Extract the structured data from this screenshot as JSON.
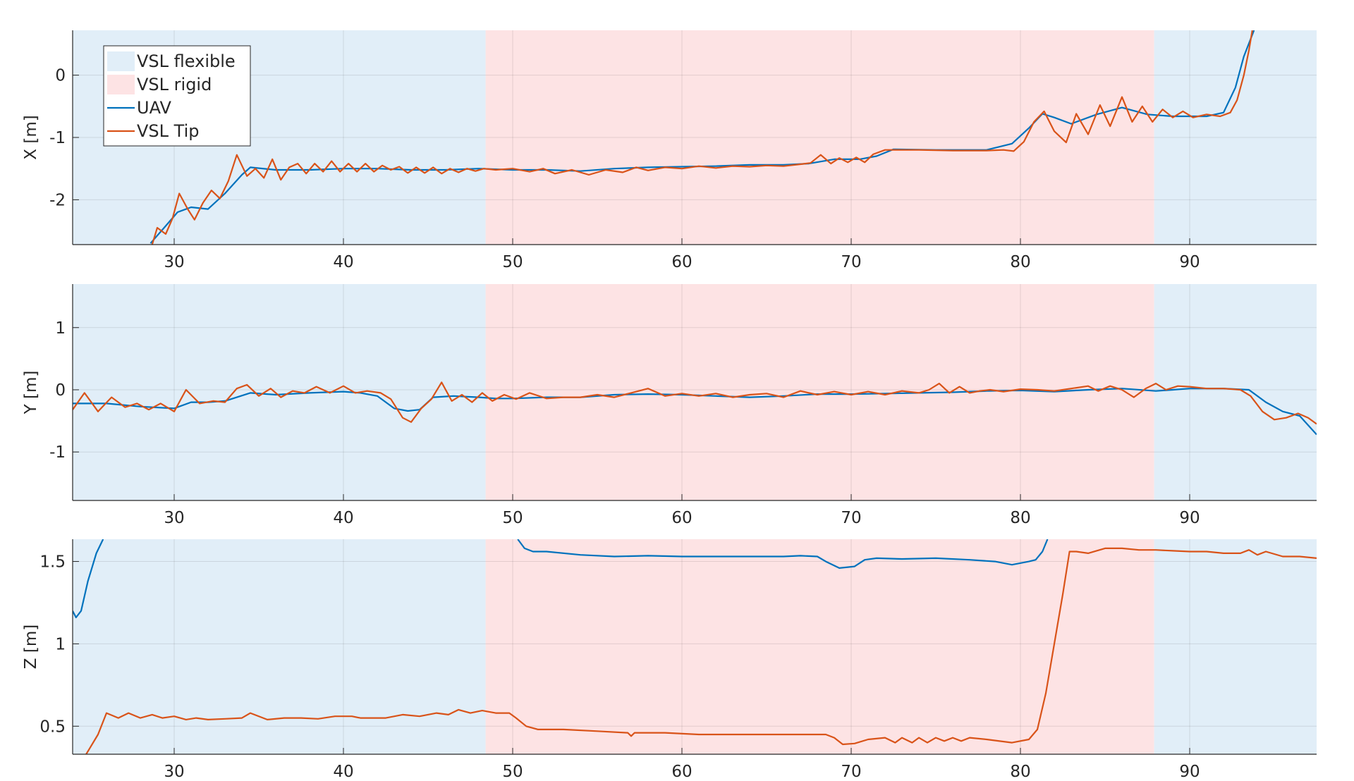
{
  "figure": {
    "legend": {
      "placement": "top-left of first panel",
      "entries": [
        {
          "label": "VSL flexible",
          "kind": "patch",
          "color": "#e1eef8"
        },
        {
          "label": "VSL rigid",
          "kind": "patch",
          "color": "#fde3e4"
        },
        {
          "label": "UAV",
          "kind": "line",
          "color": "#0072bd"
        },
        {
          "label": "VSL Tip",
          "kind": "line",
          "color": "#d95319"
        }
      ]
    }
  },
  "chart_data": [
    {
      "type": "line",
      "ylabel": "X [m]",
      "xlim": [
        24,
        97.5
      ],
      "ylim": [
        -2.72,
        0.72
      ],
      "xticks": [
        30,
        40,
        50,
        60,
        70,
        80,
        90
      ],
      "yticks": [
        -2,
        -1,
        0
      ],
      "ytick_labels": [
        "-2",
        "-1",
        "0"
      ],
      "grid": true,
      "regions": [
        {
          "label": "VSL flexible",
          "x": [
            24,
            48.4
          ]
        },
        {
          "label": "VSL rigid",
          "x": [
            48.4,
            87.9
          ]
        },
        {
          "label": "VSL flexible",
          "x": [
            87.9,
            97.5
          ]
        }
      ],
      "series": [
        {
          "name": "UAV",
          "color": "#0072bd",
          "x": [
            28.6,
            29.5,
            30.2,
            31.0,
            32.0,
            33.0,
            34.0,
            34.5,
            36,
            38,
            40,
            42,
            44,
            46,
            48,
            50,
            52,
            54,
            56,
            58,
            60,
            62,
            64,
            66,
            67.5,
            69,
            70.5,
            71.5,
            72.5,
            75,
            78,
            79.5,
            80.5,
            81.3,
            82.0,
            83.0,
            84.5,
            86.0,
            87.5,
            89,
            91,
            92.0,
            92.7,
            93.2,
            93.8
          ],
          "y": [
            -2.7,
            -2.42,
            -2.2,
            -2.12,
            -2.15,
            -1.9,
            -1.6,
            -1.48,
            -1.52,
            -1.52,
            -1.5,
            -1.5,
            -1.52,
            -1.52,
            -1.5,
            -1.52,
            -1.52,
            -1.54,
            -1.5,
            -1.48,
            -1.47,
            -1.46,
            -1.44,
            -1.44,
            -1.42,
            -1.35,
            -1.35,
            -1.3,
            -1.19,
            -1.2,
            -1.2,
            -1.1,
            -0.85,
            -0.62,
            -0.68,
            -0.78,
            -0.63,
            -0.52,
            -0.63,
            -0.66,
            -0.66,
            -0.6,
            -0.2,
            0.3,
            0.72
          ]
        },
        {
          "name": "VSL Tip",
          "color": "#d95319",
          "x": [
            28.7,
            29.0,
            29.5,
            29.9,
            30.3,
            30.8,
            31.2,
            31.7,
            32.2,
            32.7,
            33.2,
            33.7,
            34.3,
            34.8,
            35.3,
            35.8,
            36.3,
            36.8,
            37.3,
            37.8,
            38.3,
            38.8,
            39.3,
            39.8,
            40.3,
            40.8,
            41.3,
            41.8,
            42.3,
            42.8,
            43.3,
            43.8,
            44.3,
            44.8,
            45.3,
            45.8,
            46.3,
            46.8,
            47.3,
            47.8,
            48.3,
            49,
            50,
            51,
            51.8,
            52.5,
            53.5,
            54.5,
            55.5,
            56.5,
            57.3,
            58,
            59,
            60,
            61,
            62,
            63,
            64,
            65,
            66,
            67,
            67.6,
            68.2,
            68.8,
            69.3,
            69.8,
            70.3,
            70.8,
            71.3,
            72.0,
            72.5,
            74,
            76,
            78,
            79.0,
            79.6,
            80.2,
            80.8,
            81.4,
            82.0,
            82.7,
            83.3,
            84.0,
            84.7,
            85.3,
            86.0,
            86.6,
            87.2,
            87.8,
            88.4,
            89.0,
            89.6,
            90.2,
            91,
            91.8,
            92.4,
            92.8,
            93.2,
            93.5,
            93.7
          ],
          "y": [
            -2.72,
            -2.45,
            -2.55,
            -2.3,
            -1.9,
            -2.15,
            -2.32,
            -2.05,
            -1.85,
            -1.98,
            -1.7,
            -1.28,
            -1.62,
            -1.5,
            -1.65,
            -1.35,
            -1.68,
            -1.48,
            -1.42,
            -1.58,
            -1.42,
            -1.55,
            -1.38,
            -1.55,
            -1.42,
            -1.55,
            -1.42,
            -1.55,
            -1.45,
            -1.52,
            -1.47,
            -1.57,
            -1.48,
            -1.57,
            -1.48,
            -1.58,
            -1.5,
            -1.56,
            -1.5,
            -1.54,
            -1.5,
            -1.52,
            -1.5,
            -1.55,
            -1.5,
            -1.58,
            -1.52,
            -1.6,
            -1.52,
            -1.56,
            -1.48,
            -1.53,
            -1.48,
            -1.5,
            -1.46,
            -1.49,
            -1.46,
            -1.47,
            -1.45,
            -1.46,
            -1.43,
            -1.41,
            -1.28,
            -1.42,
            -1.33,
            -1.4,
            -1.32,
            -1.4,
            -1.27,
            -1.2,
            -1.2,
            -1.2,
            -1.21,
            -1.21,
            -1.2,
            -1.22,
            -1.07,
            -0.75,
            -0.58,
            -0.9,
            -1.08,
            -0.62,
            -0.95,
            -0.48,
            -0.82,
            -0.35,
            -0.75,
            -0.5,
            -0.75,
            -0.55,
            -0.68,
            -0.58,
            -0.68,
            -0.63,
            -0.66,
            -0.6,
            -0.4,
            0.0,
            0.4,
            0.72
          ]
        }
      ]
    },
    {
      "type": "line",
      "ylabel": "Y [m]",
      "xlim": [
        24,
        97.5
      ],
      "ylim": [
        -1.78,
        1.7
      ],
      "xticks": [
        30,
        40,
        50,
        60,
        70,
        80,
        90
      ],
      "yticks": [
        -1,
        0,
        1
      ],
      "ytick_labels": [
        "-1",
        "0",
        "1"
      ],
      "grid": true,
      "regions": [
        {
          "label": "VSL flexible",
          "x": [
            24,
            48.4
          ]
        },
        {
          "label": "VSL rigid",
          "x": [
            48.4,
            87.9
          ]
        },
        {
          "label": "VSL flexible",
          "x": [
            87.9,
            97.5
          ]
        }
      ],
      "series": [
        {
          "name": "UAV",
          "color": "#0072bd",
          "x": [
            24,
            26,
            28,
            30,
            31,
            32,
            33,
            34.5,
            36,
            38,
            40,
            41,
            42,
            43,
            43.8,
            44.5,
            45.3,
            46.5,
            48,
            49,
            50,
            52,
            54,
            56,
            58,
            60,
            62,
            64,
            66,
            68,
            70,
            72,
            74,
            76,
            78,
            80,
            82,
            84,
            86,
            88,
            89,
            90,
            92,
            93.5,
            94.5,
            95.5,
            96.5,
            97.5
          ],
          "y": [
            -0.22,
            -0.22,
            -0.27,
            -0.3,
            -0.2,
            -0.2,
            -0.18,
            -0.05,
            -0.08,
            -0.05,
            -0.03,
            -0.05,
            -0.1,
            -0.3,
            -0.34,
            -0.32,
            -0.12,
            -0.1,
            -0.12,
            -0.14,
            -0.14,
            -0.12,
            -0.12,
            -0.08,
            -0.07,
            -0.08,
            -0.1,
            -0.12,
            -0.1,
            -0.07,
            -0.07,
            -0.06,
            -0.05,
            -0.04,
            -0.02,
            -0.01,
            -0.03,
            0.0,
            0.02,
            -0.02,
            0.0,
            0.02,
            0.02,
            0.0,
            -0.2,
            -0.35,
            -0.42,
            -0.72
          ]
        },
        {
          "name": "VSL Tip",
          "color": "#d95319",
          "x": [
            24,
            24.7,
            25.5,
            26.3,
            27.1,
            27.8,
            28.5,
            29.2,
            30.0,
            30.7,
            31.5,
            32.3,
            33.0,
            33.7,
            34.3,
            35.0,
            35.7,
            36.3,
            37.0,
            37.7,
            38.4,
            39.2,
            40.0,
            40.7,
            41.4,
            42.2,
            42.8,
            43.5,
            44.0,
            44.6,
            45.2,
            45.8,
            46.4,
            47.0,
            47.6,
            48.2,
            48.8,
            49.5,
            50.2,
            51.0,
            52,
            53,
            54,
            55,
            56,
            57,
            58,
            59,
            60,
            61,
            62,
            63,
            64,
            65,
            66,
            67,
            68,
            69,
            70,
            71,
            72,
            73,
            74,
            74.6,
            75.2,
            75.8,
            76.4,
            77.0,
            77.6,
            78.2,
            79,
            80,
            81,
            82,
            83,
            84,
            84.6,
            85.3,
            86.0,
            86.7,
            87.4,
            88.0,
            88.6,
            89.3,
            90,
            91,
            92,
            93,
            93.6,
            94.3,
            95.0,
            95.7,
            96.4,
            97.0,
            97.5
          ],
          "y": [
            -0.32,
            -0.05,
            -0.35,
            -0.12,
            -0.28,
            -0.22,
            -0.32,
            -0.22,
            -0.35,
            0.0,
            -0.22,
            -0.18,
            -0.2,
            0.02,
            0.08,
            -0.1,
            0.02,
            -0.12,
            -0.02,
            -0.05,
            0.05,
            -0.05,
            0.06,
            -0.05,
            -0.02,
            -0.05,
            -0.15,
            -0.45,
            -0.52,
            -0.3,
            -0.15,
            0.12,
            -0.18,
            -0.08,
            -0.2,
            -0.05,
            -0.18,
            -0.08,
            -0.15,
            -0.05,
            -0.14,
            -0.12,
            -0.12,
            -0.08,
            -0.12,
            -0.05,
            0.02,
            -0.1,
            -0.06,
            -0.1,
            -0.06,
            -0.12,
            -0.08,
            -0.06,
            -0.12,
            -0.02,
            -0.08,
            -0.03,
            -0.08,
            -0.03,
            -0.08,
            -0.02,
            -0.05,
            0.0,
            0.1,
            -0.05,
            0.05,
            -0.05,
            -0.02,
            0.0,
            -0.03,
            0.01,
            0.0,
            -0.02,
            0.02,
            0.06,
            -0.02,
            0.06,
            0.0,
            -0.12,
            0.02,
            0.1,
            0.0,
            0.06,
            0.05,
            0.02,
            0.02,
            0.0,
            -0.1,
            -0.35,
            -0.48,
            -0.45,
            -0.38,
            -0.45,
            -0.55
          ]
        }
      ]
    },
    {
      "type": "line",
      "ylabel": "Z [m]",
      "xlim": [
        24,
        97.5
      ],
      "ylim": [
        0.33,
        1.635
      ],
      "xticks": [
        30,
        40,
        50,
        60,
        70,
        80,
        90
      ],
      "yticks": [
        0.5,
        1,
        1.5
      ],
      "ytick_labels": [
        "0.5",
        "1",
        "1.5"
      ],
      "grid": true,
      "regions": [
        {
          "label": "VSL flexible",
          "x": [
            24,
            48.4
          ]
        },
        {
          "label": "VSL rigid",
          "x": [
            48.4,
            87.9
          ]
        },
        {
          "label": "VSL flexible",
          "x": [
            87.9,
            97.5
          ]
        }
      ],
      "series": [
        {
          "name": "UAV",
          "color": "#0072bd",
          "x": [
            24,
            24.2,
            24.5,
            24.9,
            25.4,
            25.8,
            null,
            50.3,
            50.7,
            51.2,
            52,
            54,
            56,
            58,
            60,
            62,
            64,
            66,
            67,
            68,
            68.5,
            69.3,
            70.2,
            70.8,
            71.5,
            73,
            75,
            77,
            78.5,
            79.5,
            80.5,
            80.9,
            81.3,
            81.6
          ],
          "y": [
            1.2,
            1.16,
            1.2,
            1.38,
            1.55,
            1.635,
            null,
            1.635,
            1.58,
            1.56,
            1.56,
            1.54,
            1.53,
            1.535,
            1.53,
            1.53,
            1.53,
            1.53,
            1.535,
            1.53,
            1.5,
            1.46,
            1.47,
            1.51,
            1.52,
            1.515,
            1.52,
            1.51,
            1.5,
            1.48,
            1.5,
            1.51,
            1.56,
            1.635
          ]
        },
        {
          "name": "VSL Tip",
          "color": "#d95319",
          "x": [
            24.8,
            25.5,
            26,
            26.7,
            27.3,
            28,
            28.7,
            29.3,
            30,
            30.7,
            31.3,
            32,
            33,
            34,
            34.5,
            35.5,
            36.5,
            37.5,
            38.5,
            39.5,
            40.5,
            41,
            41.5,
            42.5,
            43.5,
            44.5,
            45.5,
            46.2,
            46.8,
            47.5,
            48.2,
            49,
            49.8,
            50.2,
            50.8,
            51.5,
            53,
            55,
            56.8,
            57,
            57.2,
            59,
            61,
            63,
            65,
            67,
            68.5,
            69,
            69.5,
            70.2,
            71,
            72,
            72.6,
            73,
            73.6,
            74,
            74.5,
            75,
            75.5,
            76,
            76.5,
            77,
            78,
            79.5,
            80.5,
            81.0,
            81.5,
            82.0,
            82.5,
            82.9,
            83.3,
            84,
            85,
            86,
            87,
            88,
            89,
            90,
            91,
            92,
            93,
            93.5,
            94,
            94.5,
            95.5,
            96.5,
            97.5
          ],
          "y": [
            0.33,
            0.45,
            0.58,
            0.55,
            0.58,
            0.55,
            0.57,
            0.55,
            0.56,
            0.54,
            0.55,
            0.54,
            0.545,
            0.55,
            0.58,
            0.54,
            0.55,
            0.55,
            0.545,
            0.56,
            0.56,
            0.55,
            0.55,
            0.55,
            0.57,
            0.56,
            0.58,
            0.57,
            0.6,
            0.58,
            0.595,
            0.58,
            0.58,
            0.55,
            0.5,
            0.48,
            0.48,
            0.47,
            0.46,
            0.44,
            0.46,
            0.46,
            0.45,
            0.45,
            0.45,
            0.45,
            0.45,
            0.43,
            0.39,
            0.395,
            0.42,
            0.43,
            0.4,
            0.43,
            0.4,
            0.43,
            0.4,
            0.43,
            0.41,
            0.43,
            0.41,
            0.43,
            0.42,
            0.4,
            0.42,
            0.48,
            0.7,
            1.0,
            1.3,
            1.56,
            1.56,
            1.55,
            1.58,
            1.58,
            1.57,
            1.57,
            1.565,
            1.56,
            1.56,
            1.55,
            1.55,
            1.57,
            1.54,
            1.56,
            1.53,
            1.53,
            1.52
          ]
        }
      ]
    }
  ]
}
